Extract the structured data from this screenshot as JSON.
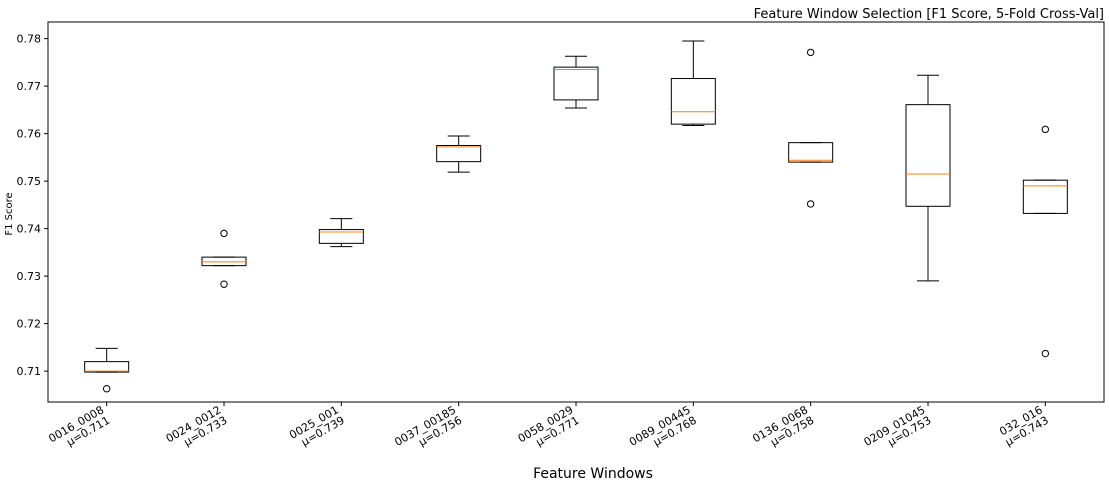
{
  "chart_data": {
    "type": "box",
    "title": "Feature Window Selection [F1 Score, 5-Fold Cross-Val]",
    "xlabel": "Feature Windows",
    "ylabel": "F1 Score",
    "ylim": [
      0.7035,
      0.7835
    ],
    "yticks": [
      0.71,
      0.72,
      0.73,
      0.74,
      0.75,
      0.76,
      0.77,
      0.78
    ],
    "grid": false,
    "categories": [
      {
        "name": "0016_0008",
        "mean_label": "μ=0.711",
        "whisker_low": 0.7098,
        "q1": 0.7098,
        "median": 0.71,
        "q3": 0.712,
        "whisker_high": 0.7148,
        "fliers": [
          0.7063
        ]
      },
      {
        "name": "0024_0012",
        "mean_label": "μ=0.733",
        "whisker_low": 0.7322,
        "q1": 0.7322,
        "median": 0.733,
        "q3": 0.734,
        "whisker_high": 0.734,
        "fliers": [
          0.739,
          0.7283
        ]
      },
      {
        "name": "0025_001",
        "mean_label": "μ=0.739",
        "whisker_low": 0.7362,
        "q1": 0.7369,
        "median": 0.7393,
        "q3": 0.7398,
        "whisker_high": 0.7421,
        "fliers": []
      },
      {
        "name": "0037_00185",
        "mean_label": "μ=0.756",
        "whisker_low": 0.7519,
        "q1": 0.7541,
        "median": 0.7572,
        "q3": 0.7575,
        "whisker_high": 0.7595,
        "fliers": []
      },
      {
        "name": "0058_0029",
        "mean_label": "μ=0.771",
        "whisker_low": 0.7654,
        "q1": 0.7671,
        "median": 0.7735,
        "q3": 0.774,
        "whisker_high": 0.7763,
        "fliers": []
      },
      {
        "name": "0089_00445",
        "mean_label": "μ=0.768",
        "whisker_low": 0.7617,
        "q1": 0.762,
        "median": 0.7646,
        "q3": 0.7716,
        "whisker_high": 0.7795,
        "fliers": []
      },
      {
        "name": "0136_0068",
        "mean_label": "μ=0.758",
        "whisker_low": 0.754,
        "q1": 0.754,
        "median": 0.7544,
        "q3": 0.7581,
        "whisker_high": 0.7581,
        "fliers": [
          0.7771,
          0.7452
        ]
      },
      {
        "name": "0209_01045",
        "mean_label": "μ=0.753",
        "whisker_low": 0.729,
        "q1": 0.7447,
        "median": 0.7515,
        "q3": 0.7661,
        "whisker_high": 0.7723,
        "fliers": []
      },
      {
        "name": "032_016",
        "mean_label": "μ=0.743",
        "whisker_low": 0.7432,
        "q1": 0.7432,
        "median": 0.749,
        "q3": 0.7502,
        "whisker_high": 0.7502,
        "fliers": [
          0.7609,
          0.7137
        ]
      }
    ]
  }
}
